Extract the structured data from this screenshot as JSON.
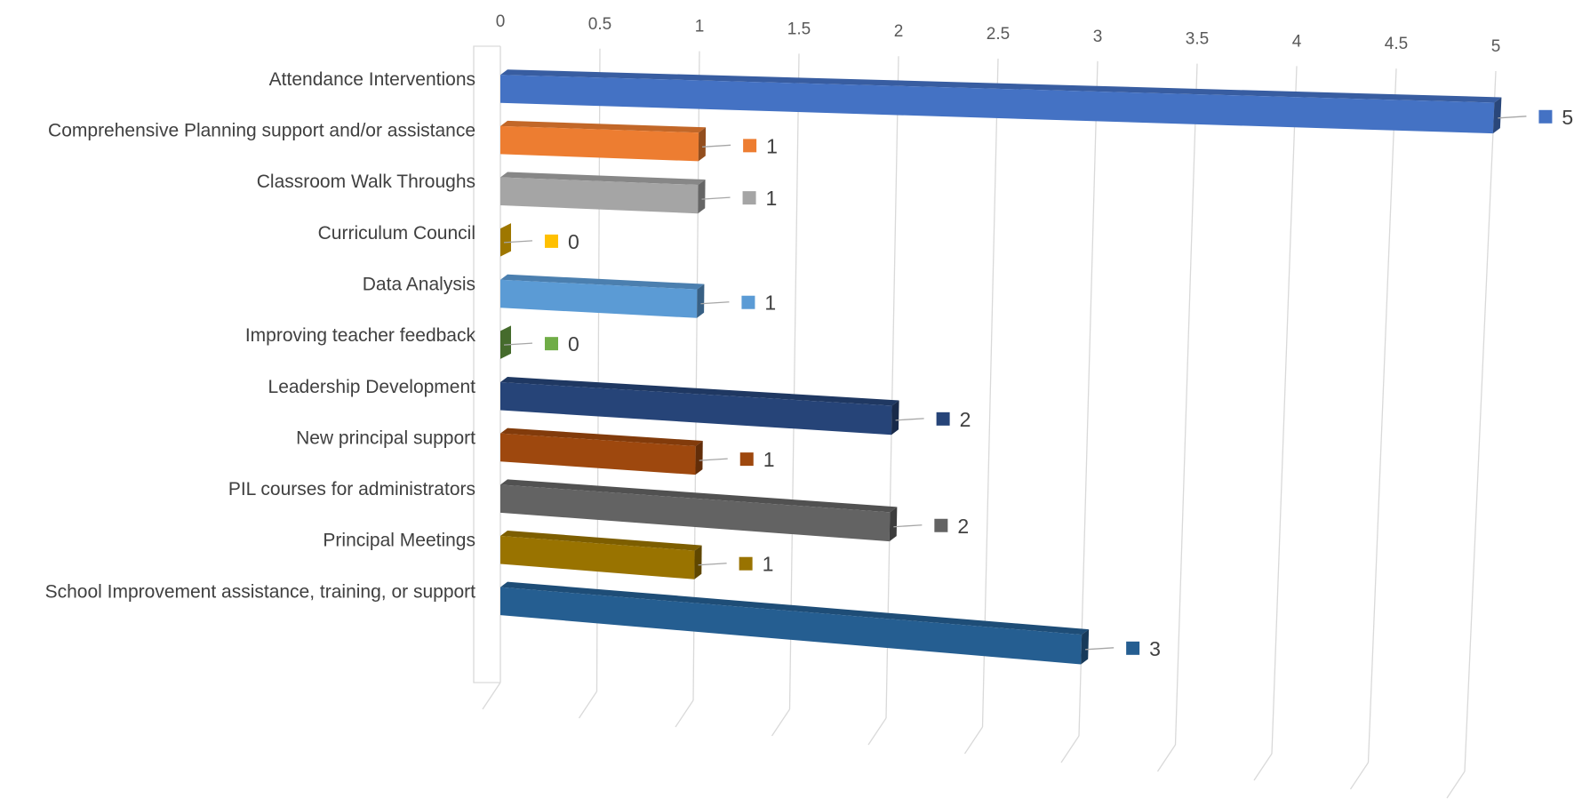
{
  "chart_data": {
    "type": "bar",
    "orientation": "horizontal",
    "style": "3d-perspective",
    "title": "",
    "xlabel": "",
    "ylabel": "",
    "xlim": [
      0,
      5
    ],
    "ticks": [
      "0",
      "0.5",
      "1",
      "1.5",
      "2",
      "2.5",
      "3",
      "3.5",
      "4",
      "4.5",
      "5"
    ],
    "grid": true,
    "legend": "none",
    "categories": [
      "Attendance Interventions",
      "Comprehensive Planning support and/or assistance",
      "Classroom Walk Throughs",
      "Curriculum Council",
      "Data Analysis",
      "Improving teacher feedback",
      "Leadership Development",
      "New principal support",
      "PIL courses for administrators",
      "Principal Meetings",
      "School Improvement assistance, training, or support"
    ],
    "values": [
      5,
      1,
      1,
      0,
      1,
      0,
      2,
      1,
      2,
      1,
      3
    ],
    "data_labels": [
      "5",
      "1",
      "1",
      "0",
      "1",
      "0",
      "2",
      "1",
      "2",
      "1",
      "3"
    ],
    "colors": [
      "#4472C4",
      "#ED7D31",
      "#A5A5A5",
      "#FFC000",
      "#5B9BD5",
      "#70AD47",
      "#264478",
      "#9E480E",
      "#636363",
      "#997300",
      "#255E91"
    ],
    "gridline_color": "#D9D9D9",
    "label_color": "#404040",
    "tick_color": "#595959"
  }
}
